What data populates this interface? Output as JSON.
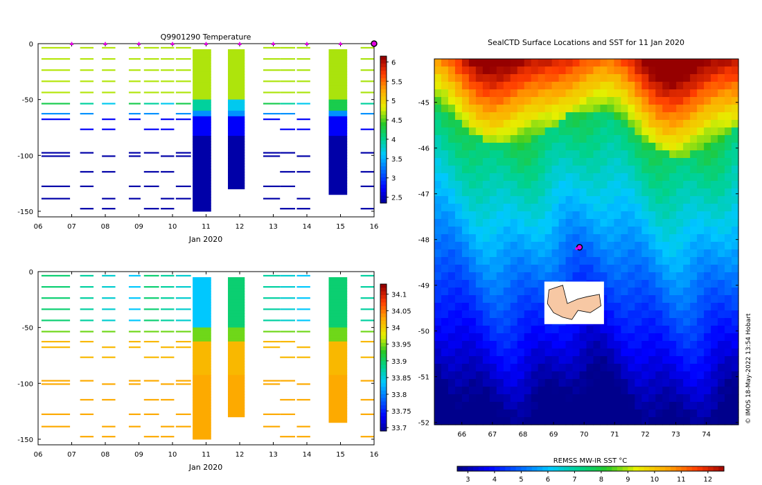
{
  "chart_data": [
    {
      "type": "heatmap",
      "panel": "top-left",
      "title": "Q9901290  Temperature",
      "xlabel": "Jan 2020",
      "ylabel": "",
      "x_tick_labels": [
        "06",
        "07",
        "08",
        "09",
        "10",
        "11",
        "12",
        "13",
        "14",
        "15",
        "16"
      ],
      "xlim": [
        6,
        16
      ],
      "y_tick_labels": [
        "0",
        "-50",
        "-100",
        "-150"
      ],
      "ylim": [
        -155,
        0
      ],
      "colorbar_ticks": [
        "6",
        "5.5",
        "5",
        "4.5",
        "4",
        "3.5",
        "3",
        "2.5"
      ],
      "colorbar_range": [
        2.35,
        6.15
      ],
      "profile_days": [
        6.7,
        7.7,
        8.7,
        9.7,
        10.2,
        10.8,
        11.7,
        12.7,
        13.3,
        13.7,
        14.7,
        15.7
      ],
      "surface_marker_days": [
        7,
        8,
        9,
        10,
        11,
        12,
        13,
        14,
        15
      ]
    },
    {
      "type": "heatmap",
      "panel": "bottom-left",
      "title": "",
      "xlabel": "Jan 2020",
      "ylabel": "",
      "x_tick_labels": [
        "06",
        "07",
        "08",
        "09",
        "10",
        "11",
        "12",
        "13",
        "14",
        "15",
        "16"
      ],
      "xlim": [
        6,
        16
      ],
      "y_tick_labels": [
        "0",
        "-50",
        "-100",
        "-150"
      ],
      "ylim": [
        -155,
        0
      ],
      "colorbar_ticks": [
        "34.1",
        "34.05",
        "34",
        "33.95",
        "33.9",
        "33.85",
        "33.8",
        "33.75",
        "33.7"
      ],
      "colorbar_range": [
        33.69,
        34.13
      ]
    },
    {
      "type": "heatmap",
      "panel": "right-map",
      "title": "SealCTD Surface Locations and SST for 11 Jan 2020",
      "x_tick_labels": [
        "66",
        "67",
        "68",
        "69",
        "70",
        "71",
        "72",
        "73",
        "74"
      ],
      "xlim": [
        65.1,
        75.05
      ],
      "y_tick_labels": [
        "-45",
        "-46",
        "-47",
        "-48",
        "-49",
        "-50",
        "-51",
        "-52"
      ],
      "ylim": [
        -52.05,
        -44.05
      ],
      "colorbar_label": "REMSS MW-IR SST °C",
      "colorbar_ticks": [
        "3",
        "4",
        "5",
        "6",
        "7",
        "8",
        "9",
        "10",
        "11",
        "12"
      ],
      "colorbar_range": [
        2.6,
        12.6
      ],
      "seal_location": [
        69.85,
        -48.17
      ],
      "side_note": "© IMOS 18-May-2022 13:54 Hobart"
    }
  ],
  "colors": {
    "marker_magenta": "#e400e4",
    "land": "#f7c8a4",
    "frame": "#000000"
  }
}
